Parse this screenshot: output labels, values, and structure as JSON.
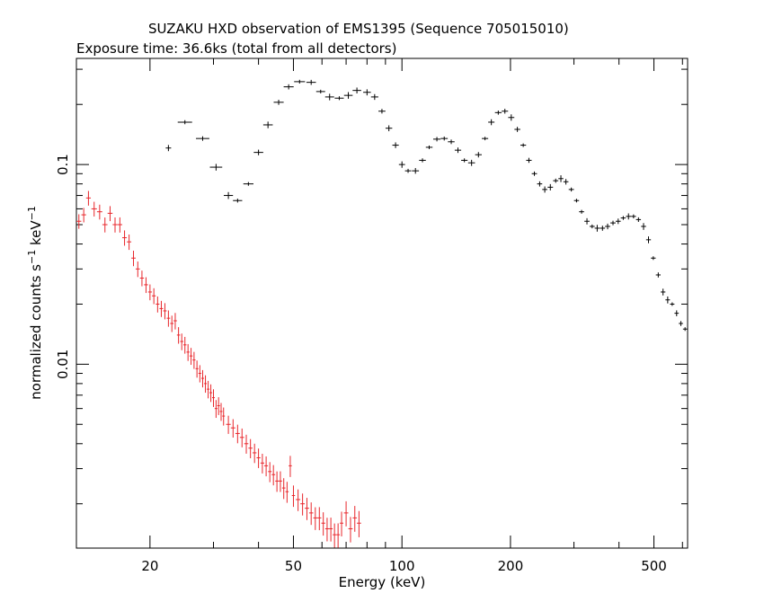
{
  "title": "SUZAKU HXD observation of EMS1395 (Sequence 705015010)",
  "subtitle": "Exposure time: 36.6ks (total from all detectors)",
  "chart_data": {
    "type": "scatter",
    "title": "SUZAKU HXD observation of EMS1395 (Sequence 705015010)",
    "subtitle": "Exposure time: 36.6ks (total from all detectors)",
    "xlabel": "Energy (keV)",
    "ylabel_main": "normalized counts s",
    "ylabel_exp1": "−1",
    "ylabel_mid": " keV",
    "ylabel_exp2": "−1",
    "xscale": "log",
    "yscale": "log",
    "xlim": [
      12.5,
      620
    ],
    "ylim": [
      0.0012,
      0.34
    ],
    "xticks": [
      20,
      50,
      100,
      200,
      500
    ],
    "xtick_labels": [
      "20",
      "50",
      "100",
      "200",
      "500"
    ],
    "yticks": [
      0.1,
      0.01
    ],
    "ytick_labels": [
      "0.1",
      "0.01"
    ],
    "grid": false,
    "legend": "none",
    "series": [
      {
        "color": "#000000",
        "points": [
          [
            22.5,
            0.121
          ],
          [
            25.0,
            0.163
          ],
          [
            28.0,
            0.135
          ],
          [
            30.5,
            0.097
          ],
          [
            33.0,
            0.07
          ],
          [
            35.0,
            0.066
          ],
          [
            37.5,
            0.08
          ],
          [
            40.0,
            0.115
          ],
          [
            42.5,
            0.158
          ],
          [
            45.5,
            0.205
          ],
          [
            48.5,
            0.245
          ],
          [
            52.0,
            0.26
          ],
          [
            56.0,
            0.258
          ],
          [
            59.5,
            0.232
          ],
          [
            63.0,
            0.218
          ],
          [
            67.0,
            0.215
          ],
          [
            71.0,
            0.222
          ],
          [
            75.0,
            0.235
          ],
          [
            80.0,
            0.23
          ],
          [
            84.0,
            0.218
          ],
          [
            88.0,
            0.185
          ],
          [
            92.0,
            0.152
          ],
          [
            96.0,
            0.125
          ],
          [
            100.0,
            0.1
          ],
          [
            104.0,
            0.093
          ],
          [
            109.0,
            0.093
          ],
          [
            114.0,
            0.105
          ],
          [
            119.0,
            0.122
          ],
          [
            125.0,
            0.134
          ],
          [
            131.0,
            0.135
          ],
          [
            137.0,
            0.13
          ],
          [
            143.0,
            0.118
          ],
          [
            149.0,
            0.105
          ],
          [
            156.0,
            0.102
          ],
          [
            163.0,
            0.112
          ],
          [
            170.0,
            0.135
          ],
          [
            177.0,
            0.163
          ],
          [
            185.0,
            0.182
          ],
          [
            193.0,
            0.185
          ],
          [
            201.0,
            0.172
          ],
          [
            209.0,
            0.15
          ],
          [
            217.0,
            0.125
          ],
          [
            225.0,
            0.105
          ],
          [
            233.0,
            0.09
          ],
          [
            241.0,
            0.08
          ],
          [
            249.0,
            0.075
          ],
          [
            258.0,
            0.077
          ],
          [
            267.0,
            0.083
          ],
          [
            276.0,
            0.085
          ],
          [
            285.0,
            0.082
          ],
          [
            295.0,
            0.075
          ],
          [
            305.0,
            0.066
          ],
          [
            315.0,
            0.058
          ],
          [
            326.0,
            0.052
          ],
          [
            337.0,
            0.049
          ],
          [
            348.0,
            0.048
          ],
          [
            360.0,
            0.048
          ],
          [
            372.0,
            0.049
          ],
          [
            385.0,
            0.051
          ],
          [
            398.0,
            0.052
          ],
          [
            411.0,
            0.054
          ],
          [
            425.0,
            0.055
          ],
          [
            439.0,
            0.055
          ],
          [
            453.0,
            0.053
          ],
          [
            468.0,
            0.049
          ],
          [
            483.0,
            0.042
          ],
          [
            498.0,
            0.034
          ],
          [
            514.0,
            0.028
          ],
          [
            530.0,
            0.023
          ],
          [
            546.0,
            0.021
          ],
          [
            562.0,
            0.02
          ],
          [
            578.0,
            0.018
          ],
          [
            594.0,
            0.016
          ],
          [
            610.0,
            0.015
          ]
        ]
      },
      {
        "color": "#e8262b",
        "points": [
          [
            12.7,
            0.052
          ],
          [
            13.1,
            0.056
          ],
          [
            13.5,
            0.068
          ],
          [
            14.0,
            0.06
          ],
          [
            14.5,
            0.058
          ],
          [
            15.0,
            0.05
          ],
          [
            15.5,
            0.057
          ],
          [
            16.0,
            0.05
          ],
          [
            16.5,
            0.05
          ],
          [
            17.0,
            0.043
          ],
          [
            17.5,
            0.041
          ],
          [
            18.0,
            0.034
          ],
          [
            18.5,
            0.03
          ],
          [
            19.0,
            0.027
          ],
          [
            19.5,
            0.025
          ],
          [
            20.0,
            0.023
          ],
          [
            20.5,
            0.022
          ],
          [
            21.0,
            0.02
          ],
          [
            21.5,
            0.019
          ],
          [
            22.0,
            0.0185
          ],
          [
            22.5,
            0.017
          ],
          [
            23.0,
            0.016
          ],
          [
            23.5,
            0.0165
          ],
          [
            24.0,
            0.014
          ],
          [
            24.5,
            0.013
          ],
          [
            25.0,
            0.0125
          ],
          [
            25.5,
            0.0115
          ],
          [
            26.0,
            0.011
          ],
          [
            26.5,
            0.0105
          ],
          [
            27.0,
            0.0095
          ],
          [
            27.5,
            0.009
          ],
          [
            28.0,
            0.0085
          ],
          [
            28.5,
            0.008
          ],
          [
            29.0,
            0.0075
          ],
          [
            29.5,
            0.0072
          ],
          [
            30.0,
            0.0068
          ],
          [
            30.5,
            0.006
          ],
          [
            31.0,
            0.0062
          ],
          [
            31.5,
            0.0058
          ],
          [
            32.0,
            0.0055
          ],
          [
            33.0,
            0.005
          ],
          [
            34.0,
            0.0048
          ],
          [
            35.0,
            0.0045
          ],
          [
            36.0,
            0.0043
          ],
          [
            37.0,
            0.004
          ],
          [
            38.0,
            0.0038
          ],
          [
            39.0,
            0.0036
          ],
          [
            40.0,
            0.0034
          ],
          [
            41.0,
            0.0032
          ],
          [
            42.0,
            0.0031
          ],
          [
            43.0,
            0.0029
          ],
          [
            44.0,
            0.0028
          ],
          [
            45.0,
            0.0026
          ],
          [
            46.0,
            0.0026
          ],
          [
            47.0,
            0.0024
          ],
          [
            48.0,
            0.0023
          ],
          [
            49.0,
            0.0031
          ],
          [
            50.0,
            0.0022
          ],
          [
            51.5,
            0.0021
          ],
          [
            53.0,
            0.002
          ],
          [
            54.5,
            0.0019
          ],
          [
            56.0,
            0.0018
          ],
          [
            57.5,
            0.0017
          ],
          [
            59.0,
            0.0017
          ],
          [
            60.5,
            0.0016
          ],
          [
            62.0,
            0.0015
          ],
          [
            63.5,
            0.0015
          ],
          [
            65.0,
            0.0014
          ],
          [
            66.5,
            0.0014
          ],
          [
            68.0,
            0.0016
          ],
          [
            70.0,
            0.0018
          ],
          [
            72.0,
            0.0015
          ],
          [
            74.0,
            0.0017
          ],
          [
            76.0,
            0.0016
          ]
        ]
      }
    ]
  }
}
